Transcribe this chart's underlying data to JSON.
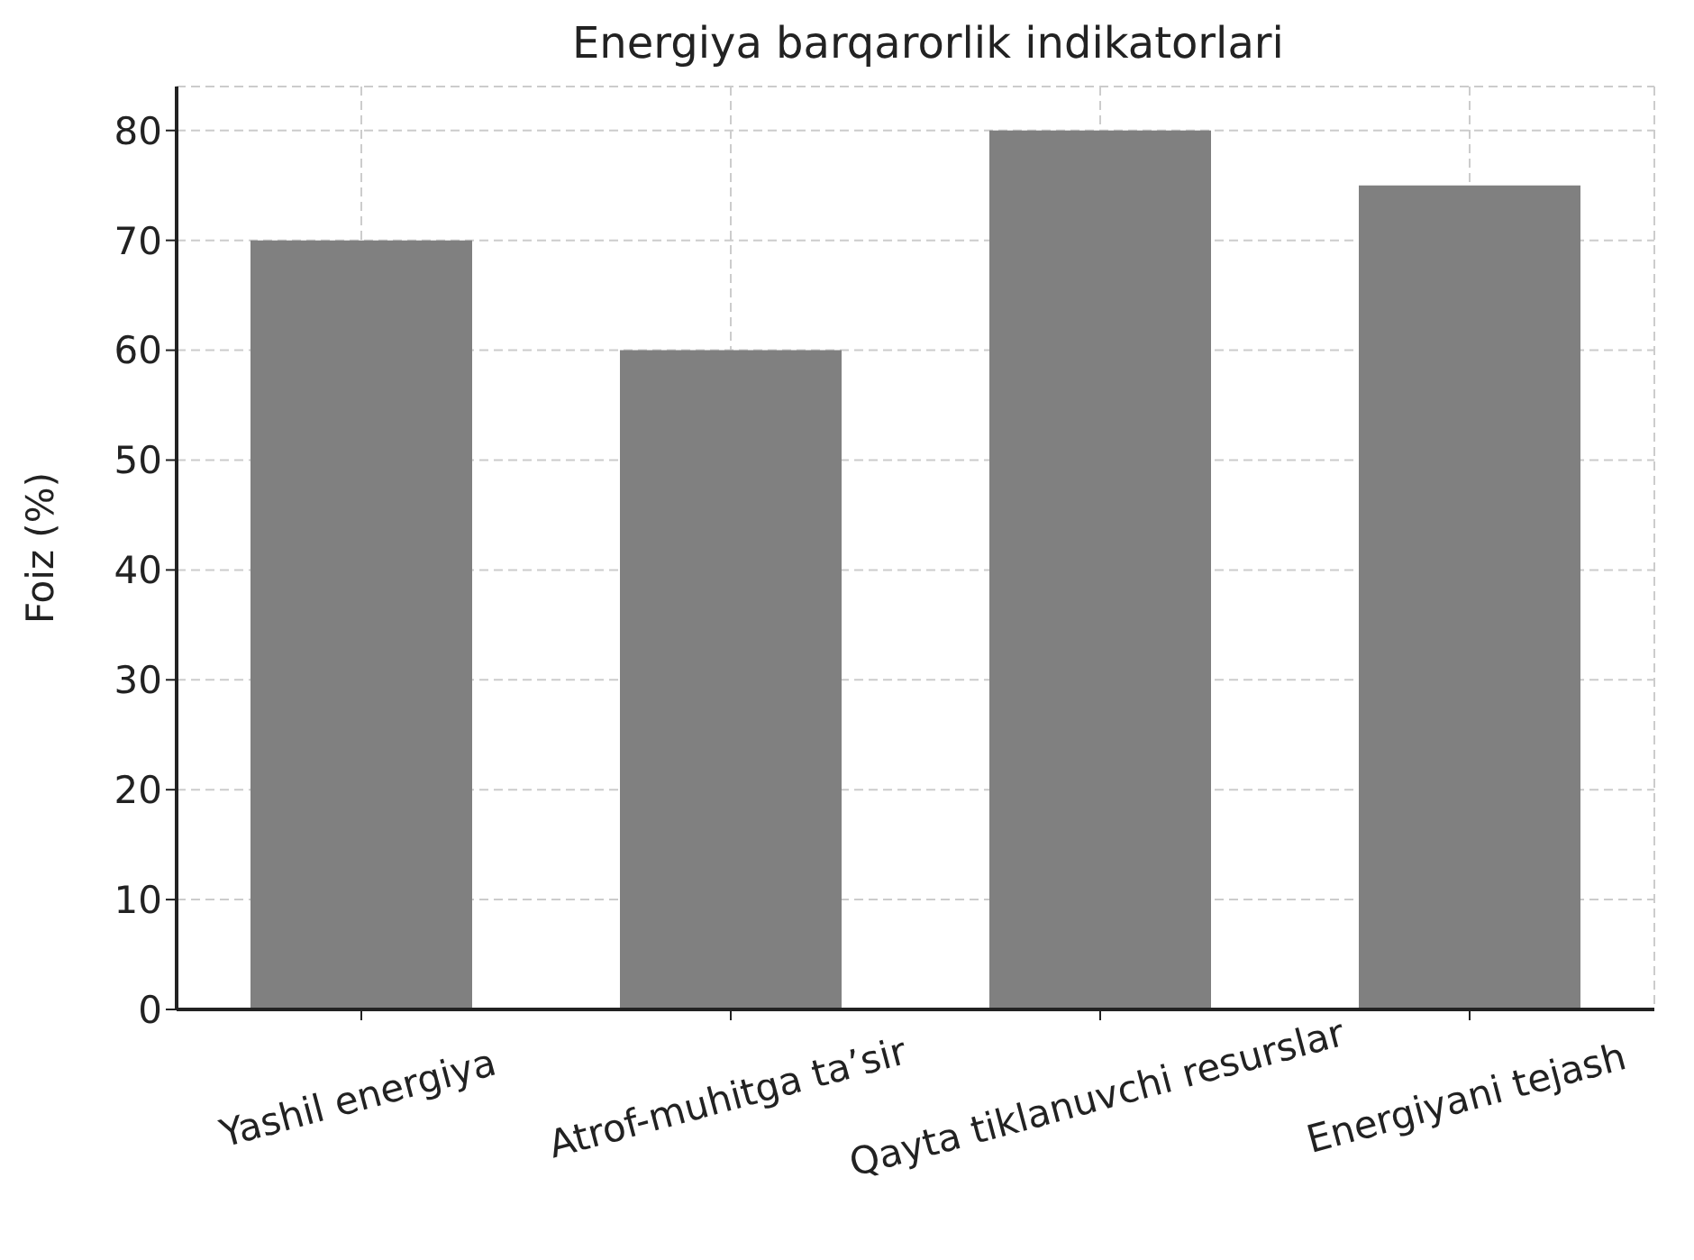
{
  "chart_data": {
    "type": "bar",
    "title": "Energiya barqarorlik indikatorlari",
    "ylabel": "Foiz (%)",
    "categories": [
      "Yashil energiya",
      "Atrof-muhitga ta’sir",
      "Qayta tiklanuvchi resurslar",
      "Energiyani tejash"
    ],
    "values": [
      70,
      60,
      80,
      75
    ],
    "color": "#808080",
    "ylim": [
      0,
      84
    ],
    "yticks": [
      0,
      10,
      20,
      30,
      40,
      50,
      60,
      70,
      80
    ],
    "grid": true
  }
}
